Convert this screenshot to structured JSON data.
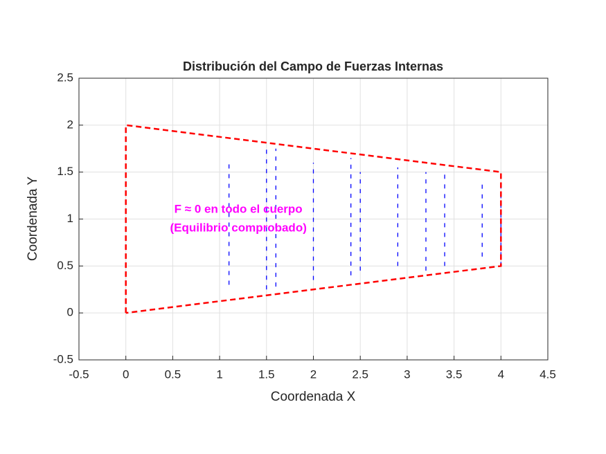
{
  "chart_data": {
    "type": "quiver",
    "title": "Distribución del Campo de Fuerzas Internas",
    "xlabel": "Coordenada X",
    "ylabel": "Coordenada Y",
    "xlim": [
      -0.5,
      4.5
    ],
    "ylim": [
      -0.5,
      2.5
    ],
    "xticks": [
      -0.5,
      0,
      0.5,
      1,
      1.5,
      2,
      2.5,
      3,
      3.5,
      4,
      4.5
    ],
    "yticks": [
      -0.5,
      0,
      0.5,
      1,
      1.5,
      2,
      2.5
    ],
    "grid": true,
    "boundary": {
      "color": "#ff0000",
      "x": [
        0,
        0,
        4,
        4,
        0
      ],
      "y": [
        0,
        2,
        1.5,
        0.5,
        0
      ]
    },
    "field": {
      "color": "#0000ff",
      "x": [
        1.1,
        1.5,
        1.6,
        2.0,
        2.4,
        2.5,
        2.9,
        3.2,
        3.4,
        3.8,
        4.0
      ],
      "y": [
        0.3,
        0.25,
        0.28,
        0.35,
        0.4,
        0.45,
        0.5,
        0.45,
        0.5,
        0.6,
        0.5
      ],
      "u": [
        0,
        0,
        0,
        0,
        0,
        0,
        0,
        0,
        0,
        0,
        0
      ],
      "v": [
        1.3,
        1.5,
        1.47,
        1.25,
        1.25,
        1.05,
        1.05,
        1.05,
        1.0,
        0.8,
        0.9
      ]
    },
    "annotation": {
      "color": "#ff00ff",
      "x": 1.2,
      "y": [
        1.1,
        0.9
      ],
      "lines": [
        "F ≈ 0 en todo el cuerpo",
        "(Equilibrio comprobado)"
      ]
    }
  }
}
